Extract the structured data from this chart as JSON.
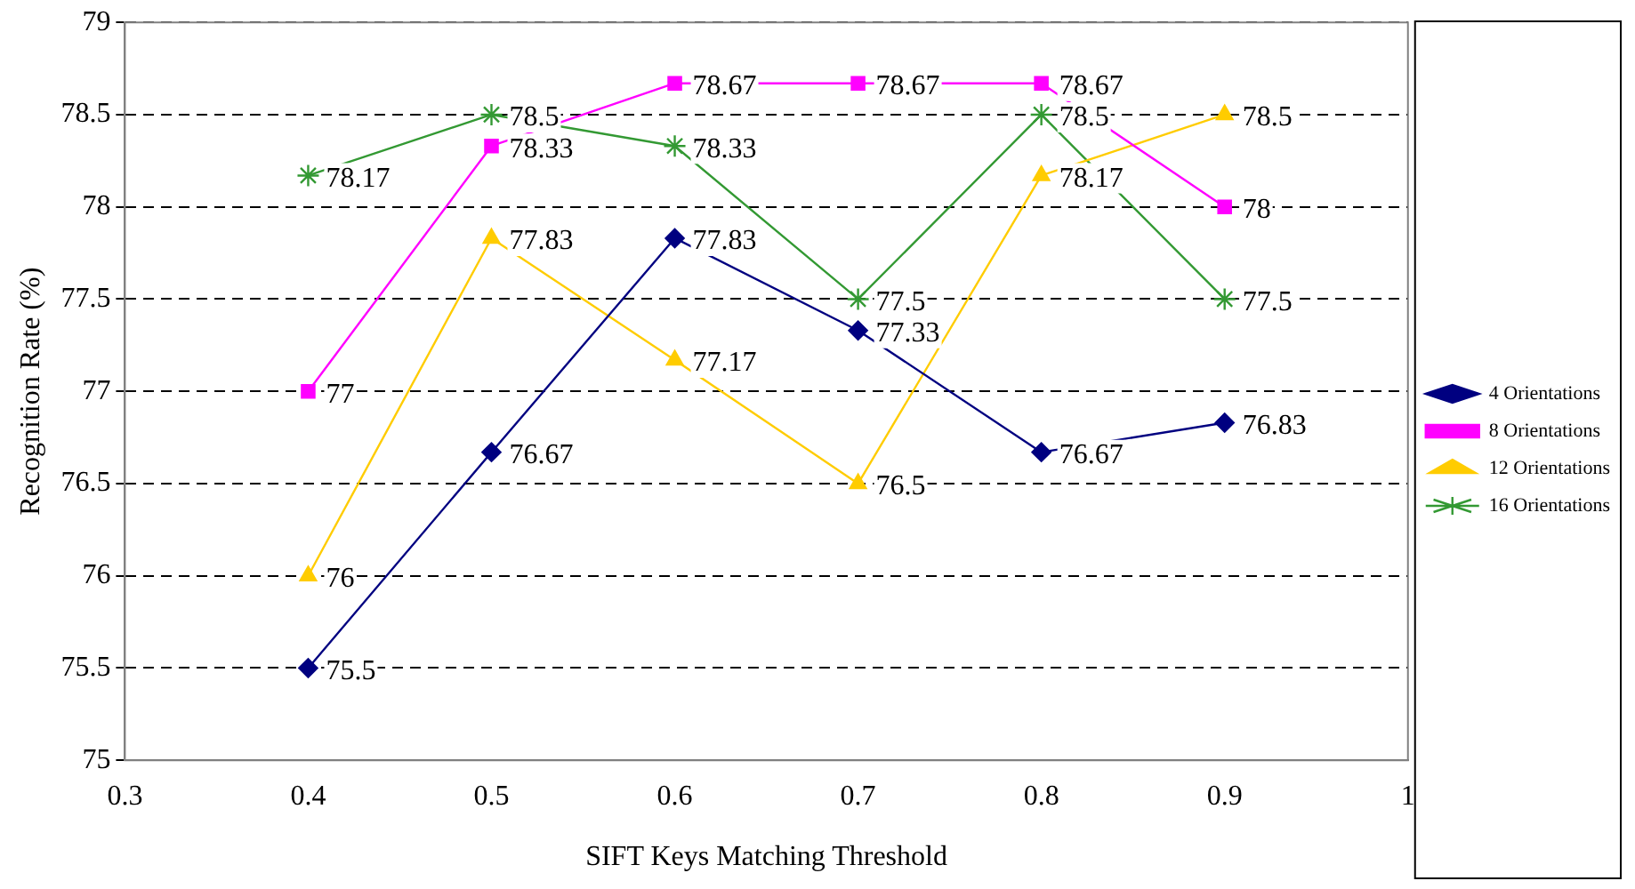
{
  "chart_data": {
    "type": "line",
    "xlabel": "SIFT Keys Matching Threshold",
    "ylabel": "Recognition Rate (%)",
    "x": [
      0.4,
      0.5,
      0.6,
      0.7,
      0.8,
      0.9
    ],
    "series": [
      {
        "name": "4 Orientations",
        "color": "#000080",
        "marker": "diamond",
        "values": [
          75.5,
          76.67,
          77.83,
          77.33,
          76.67,
          76.83
        ]
      },
      {
        "name": "8 Orientations",
        "color": "#ff00ff",
        "marker": "square",
        "values": [
          77,
          78.33,
          78.67,
          78.67,
          78.67,
          78
        ]
      },
      {
        "name": "12 Orientations",
        "color": "#ffcc00",
        "marker": "triangle",
        "values": [
          76,
          77.83,
          77.17,
          76.5,
          78.17,
          78.5
        ]
      },
      {
        "name": "16 Orientations",
        "color": "#339933",
        "marker": "cross",
        "values": [
          78.17,
          78.5,
          78.33,
          77.5,
          78.5,
          77.5
        ]
      }
    ],
    "xlim": [
      0.3,
      1
    ],
    "xticks": [
      0.3,
      0.4,
      0.5,
      0.6,
      0.7,
      0.8,
      0.9,
      1
    ],
    "ylim": [
      75,
      79
    ],
    "yticks": [
      75,
      75.5,
      76,
      76.5,
      77,
      77.5,
      78,
      78.5,
      79
    ],
    "grid": "y",
    "line_style": "solid",
    "legend": "right",
    "data_labels": true
  }
}
